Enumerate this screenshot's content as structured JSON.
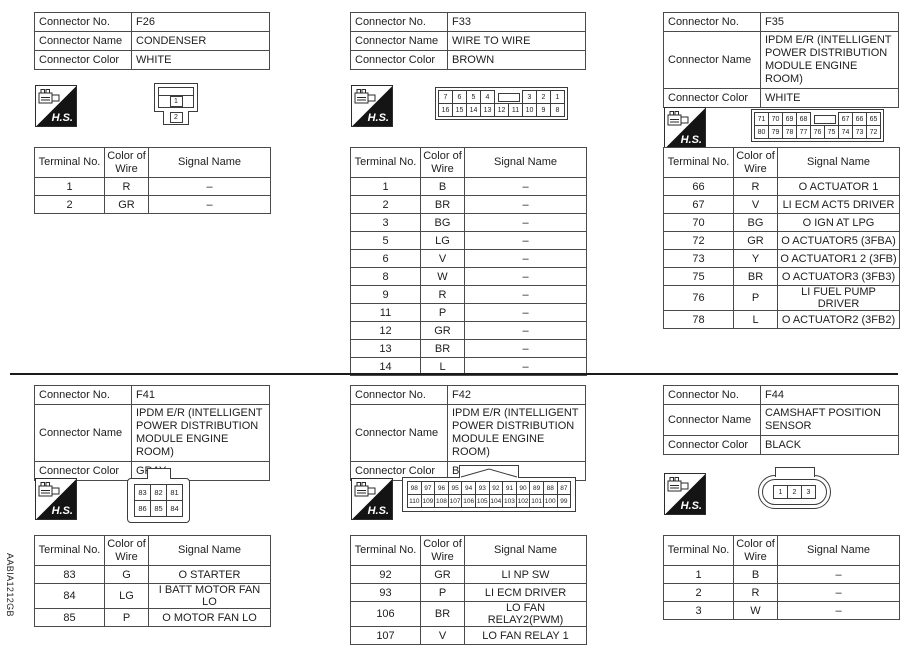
{
  "figure_code": "AABIA1212GB",
  "labels": {
    "connector_no": "Connector No.",
    "connector_name": "Connector Name",
    "connector_color": "Connector Color",
    "terminal_no": "Terminal No.",
    "color_of_wire": "Color of Wire",
    "signal_name": "Signal Name",
    "hs": "H.S."
  },
  "connectors": [
    {
      "no": "F26",
      "name": "CONDENSER",
      "color": "WHITE",
      "pins": [
        "1",
        "2"
      ],
      "terminals": [
        {
          "no": "1",
          "wire": "R",
          "signal": "–"
        },
        {
          "no": "2",
          "wire": "GR",
          "signal": "–"
        }
      ]
    },
    {
      "no": "F33",
      "name": "WIRE TO WIRE",
      "color": "BROWN",
      "pin_rows": [
        [
          "7",
          "6",
          "5",
          "4",
          null,
          "3",
          "2",
          "1"
        ],
        [
          "16",
          "15",
          "14",
          "13",
          "12",
          "11",
          "10",
          "9",
          "8"
        ]
      ],
      "terminals": [
        {
          "no": "1",
          "wire": "B",
          "signal": "–"
        },
        {
          "no": "2",
          "wire": "BR",
          "signal": "–"
        },
        {
          "no": "3",
          "wire": "BG",
          "signal": "–"
        },
        {
          "no": "5",
          "wire": "LG",
          "signal": "–"
        },
        {
          "no": "6",
          "wire": "V",
          "signal": "–"
        },
        {
          "no": "8",
          "wire": "W",
          "signal": "–"
        },
        {
          "no": "9",
          "wire": "R",
          "signal": "–"
        },
        {
          "no": "11",
          "wire": "P",
          "signal": "–"
        },
        {
          "no": "12",
          "wire": "GR",
          "signal": "–"
        },
        {
          "no": "13",
          "wire": "BR",
          "signal": "–"
        },
        {
          "no": "14",
          "wire": "L",
          "signal": "–"
        }
      ]
    },
    {
      "no": "F35",
      "name": "IPDM E/R (INTELLIGENT POWER DISTRIBUTION MODULE ENGINE ROOM)",
      "color": "WHITE",
      "pin_rows": [
        [
          "71",
          "70",
          "69",
          "68",
          null,
          "67",
          "66",
          "65"
        ],
        [
          "80",
          "79",
          "78",
          "77",
          "76",
          "75",
          "74",
          "73",
          "72"
        ]
      ],
      "terminals": [
        {
          "no": "66",
          "wire": "R",
          "signal": "O ACTUATOR 1"
        },
        {
          "no": "67",
          "wire": "V",
          "signal": "LI ECM ACT5 DRIVER"
        },
        {
          "no": "70",
          "wire": "BG",
          "signal": "O IGN AT LPG"
        },
        {
          "no": "72",
          "wire": "GR",
          "signal": "O ACTUATOR5 (3FBA)"
        },
        {
          "no": "73",
          "wire": "Y",
          "signal": "O ACTUATOR1 2 (3FB)"
        },
        {
          "no": "75",
          "wire": "BR",
          "signal": "O ACTUATOR3 (3FB3)"
        },
        {
          "no": "76",
          "wire": "P",
          "signal": "LI FUEL PUMP DRIVER"
        },
        {
          "no": "78",
          "wire": "L",
          "signal": "O ACTUATOR2 (3FB2)"
        }
      ]
    },
    {
      "no": "F41",
      "name": "IPDM E/R (INTELLIGENT POWER DISTRIBUTION MODULE ENGINE ROOM)",
      "color": "GRAY",
      "pin_rows": [
        [
          "83",
          "82",
          "81"
        ],
        [
          "86",
          "85",
          "84"
        ]
      ],
      "terminals": [
        {
          "no": "83",
          "wire": "G",
          "signal": "O STARTER"
        },
        {
          "no": "84",
          "wire": "LG",
          "signal": "I BATT MOTOR FAN LO"
        },
        {
          "no": "85",
          "wire": "P",
          "signal": "O MOTOR FAN LO"
        }
      ]
    },
    {
      "no": "F42",
      "name": "IPDM E/R (INTELLIGENT POWER DISTRIBUTION MODULE ENGINE ROOM)",
      "color": "BLACK",
      "pin_rows": [
        [
          "98",
          "97",
          "96",
          "95",
          "94",
          "93",
          "92",
          "91",
          "90",
          "89",
          "88",
          "87"
        ],
        [
          "110",
          "109",
          "108",
          "107",
          "106",
          "105",
          "104",
          "103",
          "102",
          "101",
          "100",
          "99"
        ]
      ],
      "terminals": [
        {
          "no": "92",
          "wire": "GR",
          "signal": "LI NP SW"
        },
        {
          "no": "93",
          "wire": "P",
          "signal": "LI ECM DRIVER"
        },
        {
          "no": "106",
          "wire": "BR",
          "signal": "LO FAN RELAY2(PWM)"
        },
        {
          "no": "107",
          "wire": "V",
          "signal": "LO FAN RELAY 1"
        }
      ]
    },
    {
      "no": "F44",
      "name": "CAMSHAFT POSITION SENSOR",
      "color": "BLACK",
      "pin_rows": [
        [
          "1",
          "2",
          "3"
        ]
      ],
      "terminals": [
        {
          "no": "1",
          "wire": "B",
          "signal": "–"
        },
        {
          "no": "2",
          "wire": "R",
          "signal": "–"
        },
        {
          "no": "3",
          "wire": "W",
          "signal": "–"
        }
      ]
    }
  ]
}
